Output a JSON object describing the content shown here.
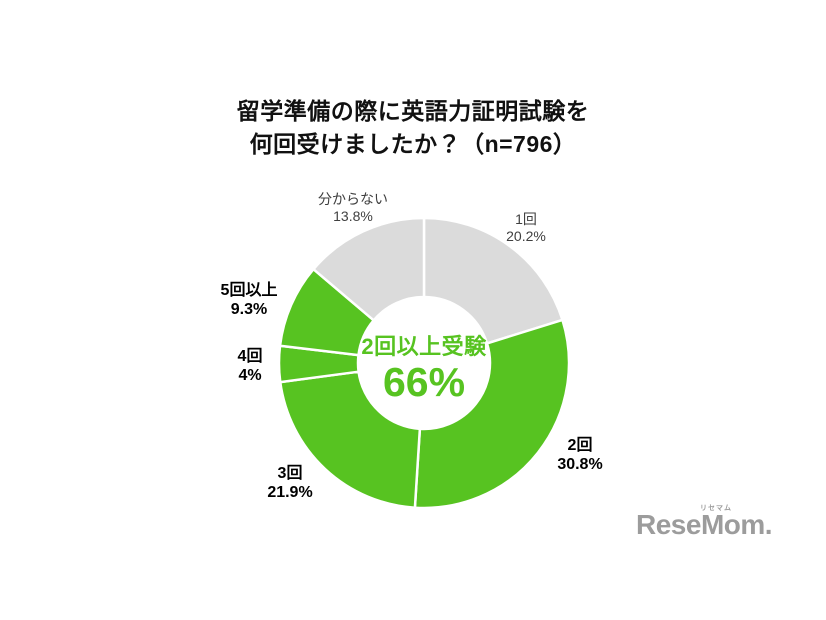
{
  "title": {
    "line1": "留学準備の際に英語力証明試験を",
    "line2": "何回受けましたか？（n=796）"
  },
  "chart_data": {
    "type": "pie",
    "subtype": "donut",
    "title": "留学準備の際に英語力証明試験を何回受けましたか？（n=796）",
    "sample_size_text": "n=796",
    "start_angle": "top",
    "direction": "clockwise",
    "segments": [
      {
        "label": "1回",
        "value": 20.2,
        "pct_text": "20.2%",
        "color": "#dbdbdb"
      },
      {
        "label": "2回",
        "value": 30.8,
        "pct_text": "30.8%",
        "color": "#57c321"
      },
      {
        "label": "3回",
        "value": 21.9,
        "pct_text": "21.9%",
        "color": "#57c321"
      },
      {
        "label": "4回",
        "value": 4,
        "pct_text": "4%",
        "color": "#57c321"
      },
      {
        "label": "5回以上",
        "value": 9.3,
        "pct_text": "9.3%",
        "color": "#57c321"
      },
      {
        "label": "分からない",
        "value": 13.8,
        "pct_text": "13.8%",
        "color": "#dbdbdb"
      }
    ],
    "center": {
      "label": "2回以上受験",
      "value": "66%"
    },
    "colors": {
      "highlight": "#57c321",
      "muted": "#dbdbdb",
      "divider": "#ffffff"
    }
  },
  "logo": {
    "text": "ReseMom",
    "suffix": ".",
    "ruby": "リセマム",
    "color": "#9c9c9c"
  }
}
